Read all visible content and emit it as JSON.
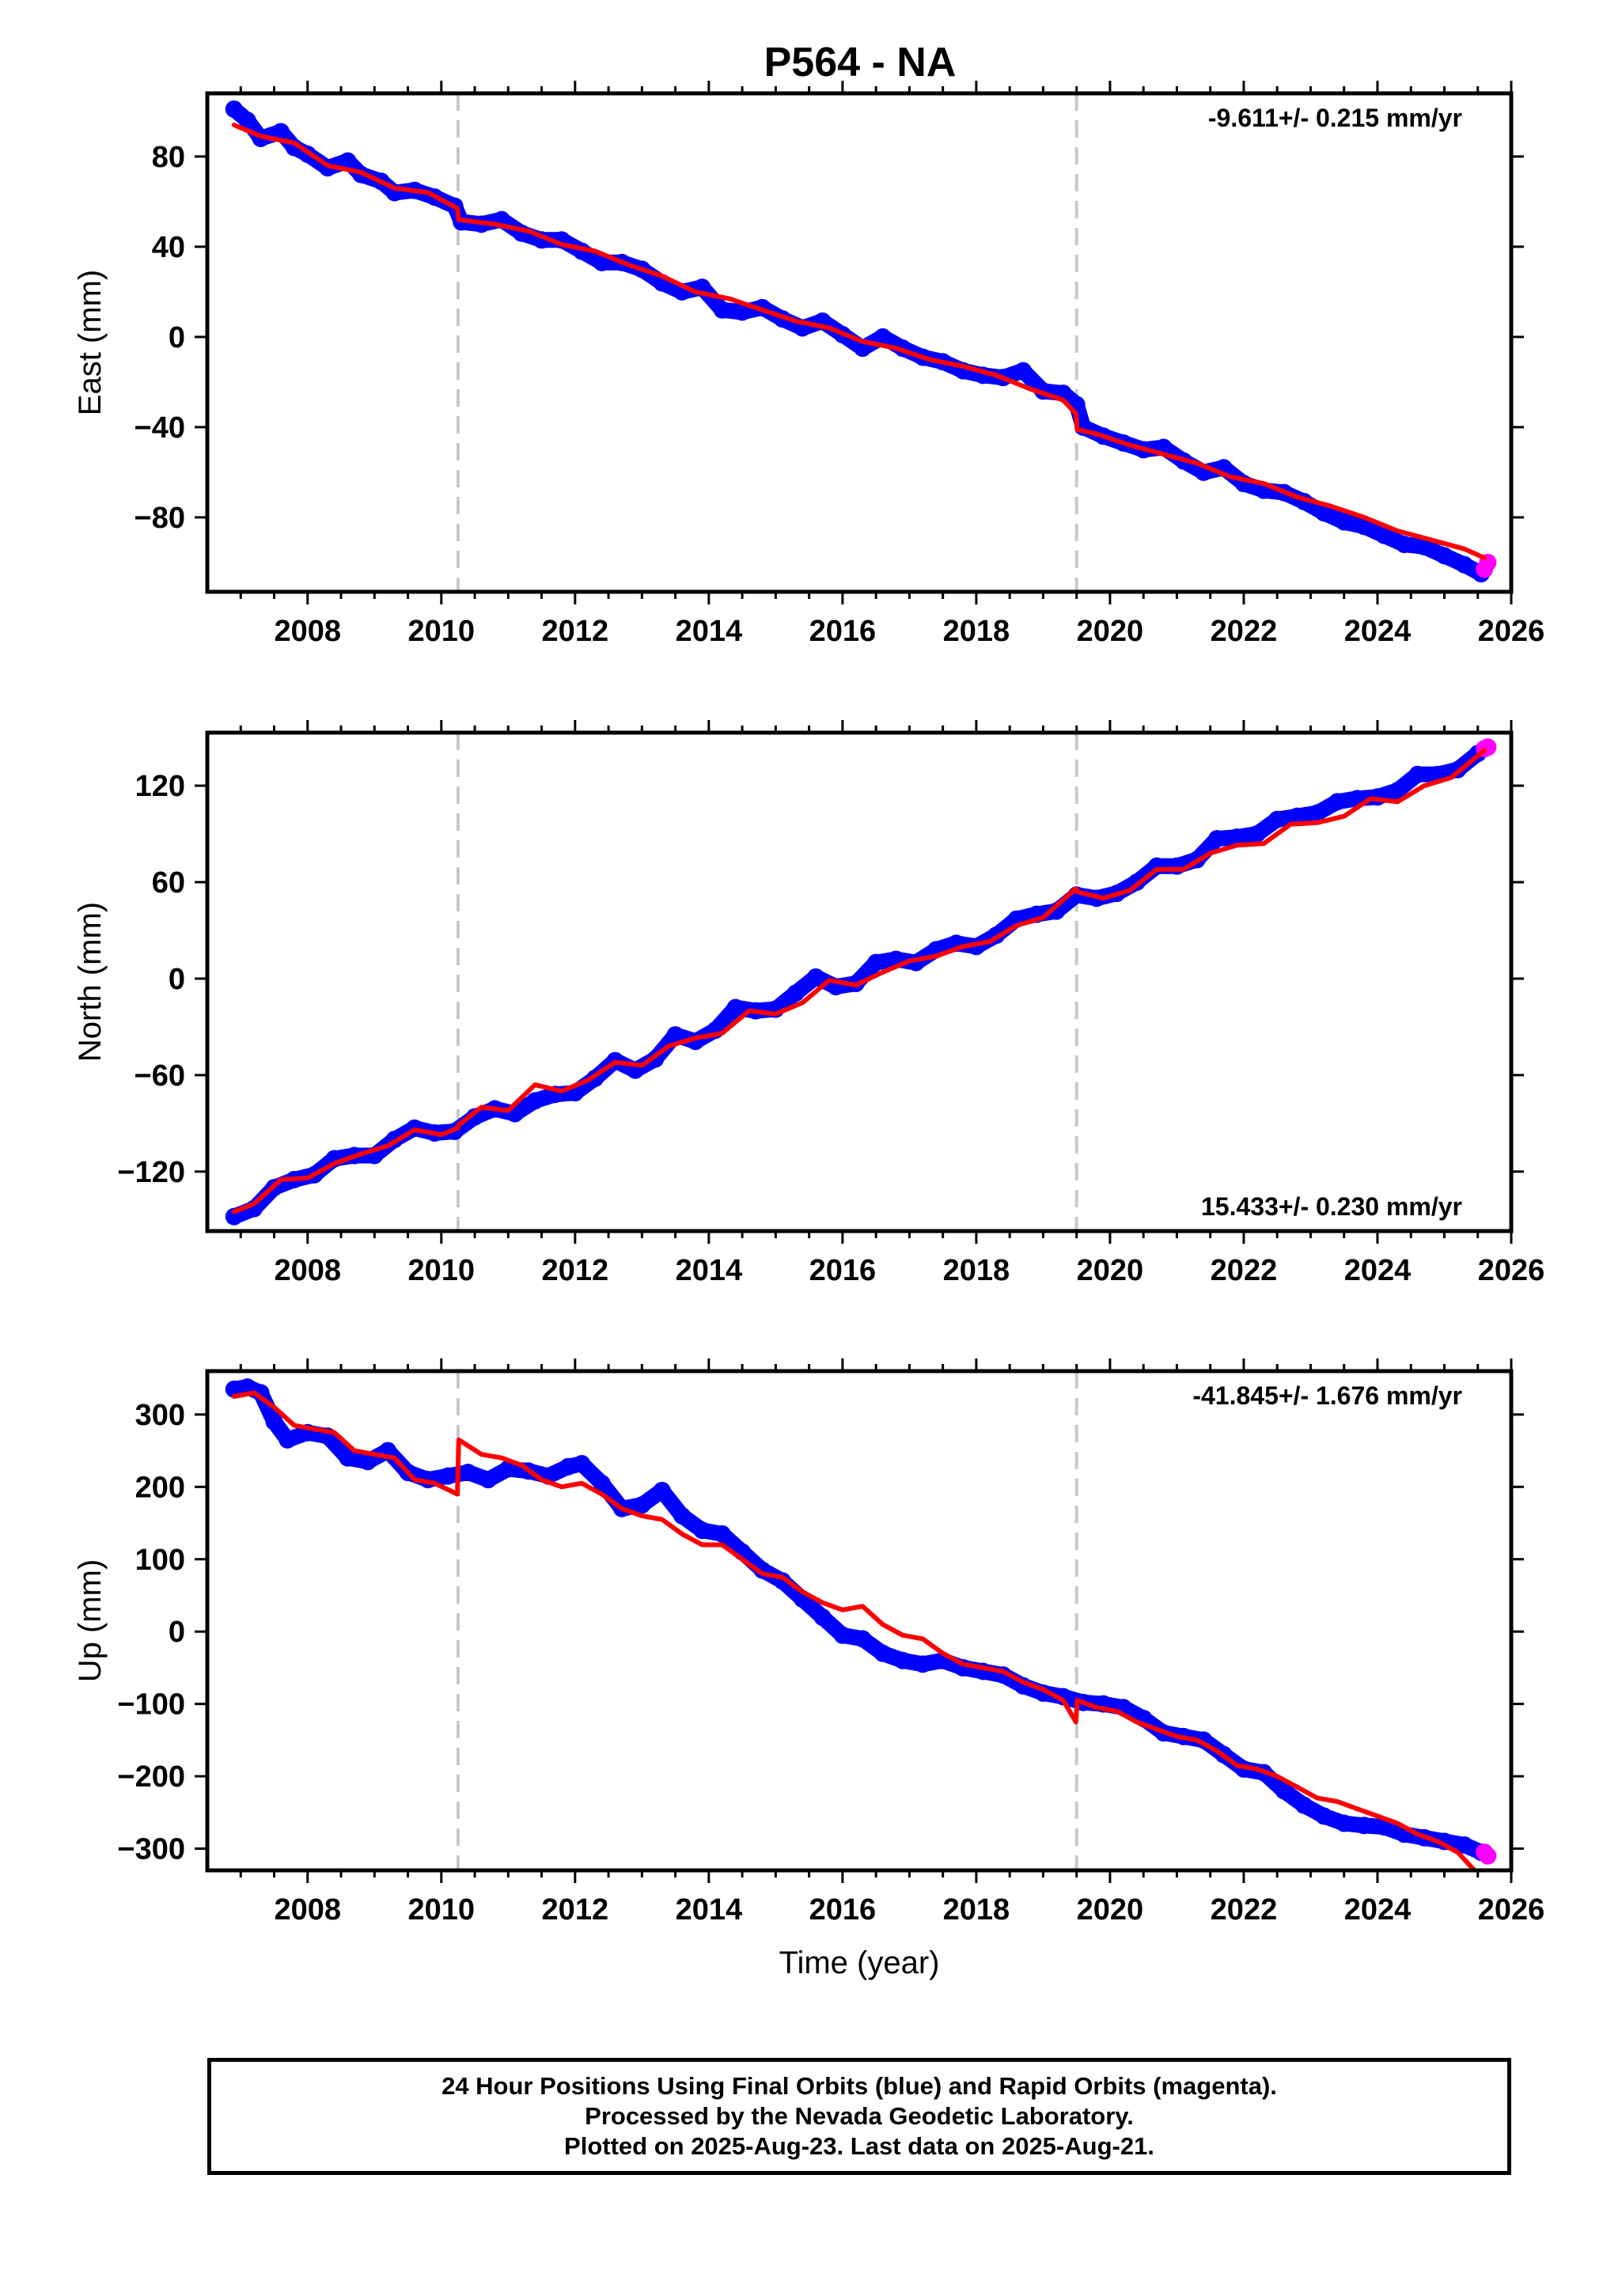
{
  "title": "P564 - NA",
  "colors": {
    "final_orbits": "#0000ff",
    "rapid_orbits": "#ff00ff",
    "model": "#ff0000",
    "events": "#c8c8c8",
    "frame": "#000000"
  },
  "footer": {
    "line1": "24 Hour Positions Using Final Orbits (blue) and Rapid Orbits (magenta).",
    "line2": "Processed by the Nevada Geodetic Laboratory.",
    "line3": "Plotted on 2025-Aug-23. Last data on 2025-Aug-21."
  },
  "chart_data": [
    {
      "type": "scatter",
      "ylabel": "East (mm)",
      "xlabel": "",
      "rate": "-9.611+/- 0.215 mm/yr",
      "rate_position": "top-right",
      "xlim": [
        2006.5,
        2026
      ],
      "ylim": [
        -113,
        108
      ],
      "xticks": [
        "2008",
        "2010",
        "2012",
        "2014",
        "2016",
        "2018",
        "2020",
        "2022",
        "2024",
        "2026"
      ],
      "yticks": [
        "80",
        "40",
        "0",
        "−40",
        "−80"
      ],
      "ytick_values": [
        80,
        40,
        0,
        -40,
        -80
      ],
      "event_lines": [
        2010.25,
        2019.5
      ],
      "series": [
        {
          "name": "Final Orbits",
          "color": "blue",
          "x": [
            2006.9,
            2007.1,
            2007.3,
            2007.6,
            2007.8,
            2008.0,
            2008.3,
            2008.6,
            2008.8,
            2009.1,
            2009.3,
            2009.6,
            2009.9,
            2010.2,
            2010.3,
            2010.6,
            2010.9,
            2011.2,
            2011.5,
            2011.8,
            2012.1,
            2012.4,
            2012.7,
            2013.0,
            2013.3,
            2013.6,
            2013.9,
            2014.2,
            2014.5,
            2014.8,
            2015.1,
            2015.4,
            2015.7,
            2016.0,
            2016.3,
            2016.6,
            2016.9,
            2017.2,
            2017.5,
            2017.8,
            2018.1,
            2018.4,
            2018.7,
            2019.0,
            2019.3,
            2019.5,
            2019.6,
            2019.9,
            2020.2,
            2020.5,
            2020.8,
            2021.1,
            2021.4,
            2021.7,
            2022.0,
            2022.3,
            2022.6,
            2022.9,
            2023.2,
            2023.5,
            2023.8,
            2024.1,
            2024.4,
            2024.7,
            2025.0,
            2025.3,
            2025.55
          ],
          "y": [
            101,
            96,
            88,
            91,
            84,
            81,
            75,
            78,
            72,
            69,
            64,
            65,
            62,
            58,
            51,
            50,
            52,
            46,
            43,
            43,
            38,
            33,
            33,
            30,
            24,
            20,
            22,
            12,
            11,
            13,
            8,
            4,
            7,
            1,
            -5,
            0,
            -5,
            -9,
            -11,
            -15,
            -17,
            -18,
            -15,
            -24,
            -25,
            -30,
            -40,
            -44,
            -47,
            -50,
            -49,
            -55,
            -60,
            -58,
            -65,
            -68,
            -69,
            -73,
            -78,
            -82,
            -84,
            -88,
            -92,
            -93,
            -97,
            -101,
            -105
          ]
        },
        {
          "name": "Rapid Orbits",
          "color": "magenta",
          "x": [
            2025.6,
            2025.65
          ],
          "y": [
            -103,
            -100
          ]
        },
        {
          "name": "Model",
          "color": "red",
          "x": [
            2006.9,
            2007.3,
            2007.8,
            2008.3,
            2008.8,
            2009.3,
            2009.8,
            2010.24,
            2010.26,
            2010.8,
            2011.3,
            2011.8,
            2012.3,
            2012.8,
            2013.3,
            2013.8,
            2014.3,
            2014.8,
            2015.3,
            2015.8,
            2016.3,
            2016.8,
            2017.3,
            2017.8,
            2018.3,
            2018.8,
            2019.3,
            2019.49,
            2019.51,
            2019.8,
            2020.3,
            2020.8,
            2021.3,
            2021.8,
            2022.3,
            2022.8,
            2023.3,
            2023.8,
            2024.3,
            2024.8,
            2025.3,
            2025.6
          ],
          "y": [
            94,
            89,
            86,
            76,
            73,
            66,
            64,
            57,
            52,
            50,
            47,
            41,
            38,
            32,
            27,
            20,
            17,
            12,
            7,
            4,
            -2,
            -5,
            -10,
            -13,
            -17,
            -23,
            -28,
            -34,
            -41,
            -43,
            -48,
            -52,
            -56,
            -62,
            -65,
            -71,
            -75,
            -80,
            -86,
            -90,
            -94,
            -98
          ]
        }
      ]
    },
    {
      "type": "scatter",
      "ylabel": "North (mm)",
      "xlabel": "",
      "rate": "15.433+/- 0.230 mm/yr",
      "rate_position": "bottom-right",
      "xlim": [
        2006.5,
        2026
      ],
      "ylim": [
        -157,
        153
      ],
      "xticks": [
        "2008",
        "2010",
        "2012",
        "2014",
        "2016",
        "2018",
        "2020",
        "2022",
        "2024",
        "2026"
      ],
      "yticks": [
        "120",
        "60",
        "0",
        "−60",
        "−120"
      ],
      "ytick_values": [
        120,
        60,
        0,
        -60,
        -120
      ],
      "event_lines": [
        2010.25,
        2019.5
      ],
      "series": [
        {
          "name": "Final Orbits",
          "color": "blue",
          "x": [
            2006.9,
            2007.2,
            2007.5,
            2007.8,
            2008.1,
            2008.4,
            2008.7,
            2009.0,
            2009.3,
            2009.6,
            2009.9,
            2010.2,
            2010.5,
            2010.8,
            2011.1,
            2011.4,
            2011.7,
            2012.0,
            2012.3,
            2012.6,
            2012.9,
            2013.2,
            2013.5,
            2013.8,
            2014.1,
            2014.4,
            2014.7,
            2015.0,
            2015.3,
            2015.6,
            2015.9,
            2016.2,
            2016.5,
            2016.8,
            2017.1,
            2017.4,
            2017.7,
            2018.0,
            2018.3,
            2018.6,
            2018.9,
            2019.2,
            2019.5,
            2019.8,
            2020.1,
            2020.4,
            2020.7,
            2021.0,
            2021.3,
            2021.6,
            2021.9,
            2022.2,
            2022.5,
            2022.8,
            2023.1,
            2023.4,
            2023.7,
            2024.0,
            2024.3,
            2024.6,
            2024.9,
            2025.2,
            2025.5
          ],
          "y": [
            -148,
            -143,
            -130,
            -125,
            -122,
            -112,
            -110,
            -110,
            -100,
            -93,
            -96,
            -95,
            -86,
            -81,
            -84,
            -76,
            -72,
            -71,
            -62,
            -51,
            -57,
            -50,
            -35,
            -39,
            -32,
            -18,
            -20,
            -19,
            -9,
            1,
            -5,
            -3,
            10,
            12,
            10,
            18,
            22,
            20,
            27,
            37,
            40,
            42,
            52,
            50,
            53,
            60,
            70,
            70,
            74,
            87,
            88,
            90,
            99,
            101,
            103,
            110,
            112,
            113,
            117,
            127,
            127,
            130,
            140
          ]
        },
        {
          "name": "Rapid Orbits",
          "color": "magenta",
          "x": [
            2025.6,
            2025.65
          ],
          "y": [
            143,
            144
          ]
        },
        {
          "name": "Model",
          "color": "red",
          "x": [
            2006.9,
            2007.2,
            2007.6,
            2008.0,
            2008.4,
            2008.8,
            2009.2,
            2009.6,
            2010.0,
            2010.24,
            2010.26,
            2010.6,
            2011.0,
            2011.4,
            2011.8,
            2012.2,
            2012.6,
            2013.0,
            2013.4,
            2013.8,
            2014.2,
            2014.6,
            2015.0,
            2015.4,
            2015.8,
            2016.2,
            2016.6,
            2017.0,
            2017.4,
            2017.8,
            2018.2,
            2018.6,
            2019.0,
            2019.49,
            2019.51,
            2019.9,
            2020.3,
            2020.7,
            2021.1,
            2021.5,
            2021.9,
            2022.3,
            2022.7,
            2023.1,
            2023.5,
            2023.9,
            2024.3,
            2024.7,
            2025.1,
            2025.6
          ],
          "y": [
            -145,
            -140,
            -125,
            -124,
            -115,
            -109,
            -104,
            -94,
            -97,
            -93,
            -91,
            -80,
            -82,
            -66,
            -70,
            -63,
            -52,
            -54,
            -42,
            -37,
            -34,
            -20,
            -22,
            -15,
            -1,
            -4,
            4,
            11,
            14,
            20,
            23,
            33,
            38,
            56,
            54,
            50,
            55,
            68,
            68,
            78,
            83,
            84,
            96,
            97,
            101,
            112,
            110,
            120,
            125,
            142
          ]
        }
      ]
    },
    {
      "type": "scatter",
      "ylabel": "Up (mm)",
      "xlabel": "Time (year)",
      "rate": "-41.845+/- 1.676 mm/yr",
      "rate_position": "top-right",
      "xlim": [
        2006.5,
        2026
      ],
      "ylim": [
        -330,
        360
      ],
      "xticks": [
        "2008",
        "2010",
        "2012",
        "2014",
        "2016",
        "2018",
        "2020",
        "2022",
        "2024",
        "2026"
      ],
      "yticks": [
        "300",
        "200",
        "100",
        "0",
        "−100",
        "−200",
        "−300"
      ],
      "ytick_values": [
        300,
        200,
        100,
        0,
        -100,
        -200,
        -300
      ],
      "event_lines": [
        2010.25,
        2019.5
      ],
      "series": [
        {
          "name": "Final Orbits",
          "color": "blue",
          "x": [
            2006.9,
            2007.1,
            2007.3,
            2007.5,
            2007.7,
            2008.0,
            2008.3,
            2008.6,
            2008.9,
            2009.2,
            2009.5,
            2009.8,
            2010.1,
            2010.4,
            2010.7,
            2011.0,
            2011.3,
            2011.6,
            2011.9,
            2012.1,
            2012.4,
            2012.7,
            2013.0,
            2013.3,
            2013.6,
            2013.9,
            2014.2,
            2014.5,
            2014.8,
            2015.1,
            2015.4,
            2015.7,
            2016.0,
            2016.3,
            2016.6,
            2016.9,
            2017.2,
            2017.5,
            2017.8,
            2018.1,
            2018.4,
            2018.7,
            2019.0,
            2019.3,
            2019.6,
            2019.9,
            2020.2,
            2020.5,
            2020.8,
            2021.1,
            2021.4,
            2021.7,
            2022.0,
            2022.3,
            2022.6,
            2022.9,
            2023.2,
            2023.5,
            2023.8,
            2024.1,
            2024.4,
            2024.7,
            2025.0,
            2025.3,
            2025.55
          ],
          "y": [
            335,
            338,
            330,
            290,
            265,
            275,
            270,
            240,
            235,
            250,
            220,
            210,
            215,
            220,
            210,
            225,
            222,
            215,
            228,
            232,
            205,
            170,
            175,
            195,
            160,
            140,
            135,
            110,
            85,
            70,
            45,
            20,
            -5,
            -10,
            -30,
            -40,
            -45,
            -40,
            -50,
            -55,
            -60,
            -75,
            -85,
            -90,
            -98,
            -100,
            -105,
            -120,
            -140,
            -145,
            -150,
            -170,
            -190,
            -195,
            -220,
            -240,
            -255,
            -265,
            -268,
            -270,
            -280,
            -285,
            -290,
            -295,
            -305
          ]
        },
        {
          "name": "Rapid Orbits",
          "color": "magenta",
          "x": [
            2025.6,
            2025.65
          ],
          "y": [
            -305,
            -310
          ]
        },
        {
          "name": "Model",
          "color": "red",
          "x": [
            2006.9,
            2007.2,
            2007.5,
            2007.8,
            2008.1,
            2008.4,
            2008.7,
            2009.0,
            2009.3,
            2009.6,
            2009.9,
            2010.24,
            2010.26,
            2010.6,
            2010.9,
            2011.2,
            2011.5,
            2011.8,
            2012.1,
            2012.4,
            2012.7,
            2013.0,
            2013.3,
            2013.6,
            2013.9,
            2014.2,
            2014.5,
            2014.8,
            2015.1,
            2015.4,
            2015.7,
            2016.0,
            2016.3,
            2016.6,
            2016.9,
            2017.2,
            2017.5,
            2017.8,
            2018.1,
            2018.4,
            2018.7,
            2019.0,
            2019.3,
            2019.49,
            2019.51,
            2019.8,
            2020.1,
            2020.4,
            2020.7,
            2021.0,
            2021.3,
            2021.6,
            2021.9,
            2022.2,
            2022.5,
            2022.8,
            2023.1,
            2023.4,
            2023.7,
            2024.0,
            2024.3,
            2024.6,
            2024.9,
            2025.2,
            2025.45
          ],
          "y": [
            325,
            330,
            310,
            285,
            280,
            275,
            250,
            245,
            240,
            210,
            205,
            190,
            265,
            245,
            240,
            230,
            210,
            200,
            205,
            190,
            170,
            160,
            155,
            135,
            120,
            120,
            100,
            80,
            75,
            55,
            40,
            30,
            35,
            10,
            -5,
            -10,
            -30,
            -45,
            -50,
            -55,
            -70,
            -80,
            -95,
            -125,
            -95,
            -105,
            -110,
            -125,
            -135,
            -145,
            -150,
            -165,
            -185,
            -190,
            -200,
            -215,
            -230,
            -235,
            -245,
            -255,
            -265,
            -280,
            -290,
            -305,
            -330
          ]
        }
      ]
    }
  ]
}
